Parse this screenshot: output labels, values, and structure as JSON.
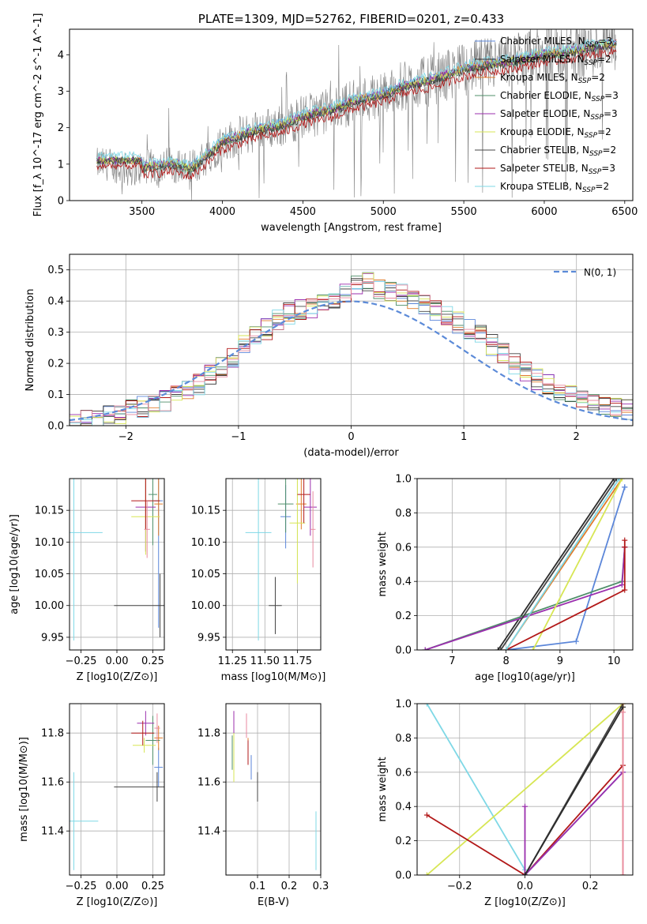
{
  "colors": {
    "miles_chabrier": "#5b86d9",
    "miles_salpeter": "#2b2b2b",
    "miles_kroupa": "#e07b2a",
    "elodie_chabrier": "#4f8f6a",
    "elodie_salpeter": "#9b2fae",
    "elodie_kroupa": "#d7e654",
    "stelib_chabrier": "#444444",
    "stelib_salpeter": "#b21818",
    "stelib_kroupa": "#7fd8e6",
    "gaussian": "#5b8ad8",
    "pink": "#e88aa0",
    "observed": "#808080"
  },
  "chart_data": [
    {
      "id": "spectrum",
      "type": "line",
      "title": "PLATE=1309, MJD=52762, FIBERID=0201, z=0.433",
      "xlabel": "wavelength [Angstrom, rest frame]",
      "ylabel": "Flux [f_λ 10^-17 erg cm^-2 s^-1 A^-1]",
      "xlim": [
        3050,
        6550
      ],
      "ylim": [
        0,
        4.7
      ],
      "xticks": [
        3500,
        4000,
        4500,
        5000,
        5500,
        6000,
        6500
      ],
      "yticks": [
        0,
        1,
        2,
        3,
        4
      ],
      "grid": false,
      "legend_position": "top-right",
      "continuum_x": [
        3220,
        3300,
        3400,
        3500,
        3600,
        3700,
        3800,
        3900,
        4000,
        4100,
        4200,
        4300,
        4400,
        4500,
        4600,
        4700,
        4800,
        4900,
        5000,
        5100,
        5200,
        5300,
        5400,
        5500,
        5600,
        5700,
        5800,
        5900,
        6000,
        6100,
        6200,
        6300,
        6450
      ],
      "continuum_y": [
        1.0,
        1.0,
        0.85,
        0.9,
        0.95,
        1.0,
        0.85,
        1.2,
        1.6,
        1.75,
        1.9,
        2.0,
        2.1,
        2.3,
        2.4,
        2.5,
        2.7,
        2.8,
        2.9,
        3.1,
        3.2,
        3.3,
        3.45,
        3.6,
        3.7,
        3.75,
        3.8,
        3.9,
        4.0,
        4.05,
        4.1,
        4.2,
        4.3
      ],
      "series": [
        {
          "name": "Chabrier MILES, N_SSP=3"
        },
        {
          "name": "Salpeter MILES, N_SSP=2"
        },
        {
          "name": "Kroupa MILES, N_SSP=2"
        },
        {
          "name": "Chabrier ELODIE, N_SSP=3"
        },
        {
          "name": "Salpeter ELODIE, N_SSP=3"
        },
        {
          "name": "Kroupa ELODIE, N_SSP=2"
        },
        {
          "name": "Chabrier STELIB, N_SSP=2"
        },
        {
          "name": "Salpeter STELIB, N_SSP=3"
        },
        {
          "name": "Kroupa STELIB, N_SSP=2"
        }
      ]
    },
    {
      "id": "residuals",
      "type": "line",
      "xlabel": "(data-model)/error",
      "ylabel": "Normed distribution",
      "xlim": [
        -2.5,
        2.5
      ],
      "ylim": [
        0,
        0.55
      ],
      "xticks": [
        -2,
        -1,
        0,
        1,
        2
      ],
      "yticks": [
        0.0,
        0.1,
        0.2,
        0.3,
        0.4,
        0.5
      ],
      "grid": true,
      "legend": "N(0, 1)",
      "legend_position": "top-right",
      "histogram_bin_width": 0.1,
      "histogram_envelope": [
        0.01,
        0.015,
        0.02,
        0.03,
        0.04,
        0.05,
        0.06,
        0.07,
        0.08,
        0.1,
        0.11,
        0.13,
        0.16,
        0.19,
        0.22,
        0.26,
        0.29,
        0.31,
        0.34,
        0.36,
        0.37,
        0.38,
        0.39,
        0.4,
        0.42,
        0.45,
        0.46,
        0.44,
        0.43,
        0.42,
        0.41,
        0.39,
        0.37,
        0.35,
        0.33,
        0.31,
        0.29,
        0.26,
        0.23,
        0.2,
        0.17,
        0.15,
        0.13,
        0.11,
        0.1,
        0.09,
        0.08,
        0.07,
        0.06,
        0.05
      ]
    },
    {
      "id": "age_vs_z",
      "type": "scatter",
      "xlabel": "Z [log10(Z/Z⊙)]",
      "ylabel": "age  [log10(age/yr)]",
      "xlim": [
        -0.33,
        0.33
      ],
      "ylim": [
        9.93,
        10.2
      ],
      "xticks": [
        -0.25,
        0.0,
        0.25
      ],
      "xticklabels": [
        "−0.25",
        "0.00",
        "0.25"
      ],
      "yticks": [
        9.95,
        10.0,
        10.05,
        10.1,
        10.15
      ],
      "grid": true,
      "points": [
        {
          "x": 0.29,
          "y": 10.165,
          "xerr": 0.03,
          "yerr": 0.2,
          "c": "miles_chabrier"
        },
        {
          "x": 0.29,
          "y": 10.16,
          "xerr": 0.03,
          "yerr": 0.05,
          "c": "miles_kroupa"
        },
        {
          "x": 0.3,
          "y": 10.0,
          "xerr": 0.32,
          "yerr": 0.05,
          "c": "stelib_chabrier"
        },
        {
          "x": 0.25,
          "y": 10.175,
          "xerr": 0.03,
          "yerr": 0.08,
          "c": "elodie_chabrier"
        },
        {
          "x": 0.2,
          "y": 10.155,
          "xerr": 0.07,
          "yerr": 0.07,
          "c": "elodie_salpeter"
        },
        {
          "x": 0.2,
          "y": 10.14,
          "xerr": 0.1,
          "yerr": 0.06,
          "c": "elodie_kroupa"
        },
        {
          "x": 0.2,
          "y": 10.165,
          "xerr": 0.1,
          "yerr": 0.045,
          "c": "stelib_salpeter"
        },
        {
          "x": 0.21,
          "y": 10.12,
          "xerr": 0.02,
          "yerr": 0.045,
          "c": "pink"
        },
        {
          "x": -0.3,
          "y": 10.115,
          "xerr": 0.2,
          "yerr": 0.17,
          "c": "stelib_kroupa"
        }
      ]
    },
    {
      "id": "age_vs_mass",
      "type": "scatter",
      "xlabel": "mass [log10(M/M⊙)]",
      "xlim": [
        11.2,
        11.93
      ],
      "ylim": [
        9.93,
        10.2
      ],
      "xticks": [
        11.25,
        11.5,
        11.75
      ],
      "yticks": [
        9.95,
        10.0,
        10.05,
        10.1,
        10.15
      ],
      "grid": true,
      "points": [
        {
          "x": 11.66,
          "y": 10.14,
          "xerr": 0.04,
          "yerr": 0.05,
          "c": "miles_chabrier"
        },
        {
          "x": 11.78,
          "y": 10.16,
          "xerr": 0.04,
          "yerr": 0.04,
          "c": "miles_kroupa"
        },
        {
          "x": 11.58,
          "y": 10.0,
          "xerr": 0.05,
          "yerr": 0.045,
          "c": "stelib_chabrier"
        },
        {
          "x": 11.66,
          "y": 10.16,
          "xerr": 0.06,
          "yerr": 0.045,
          "c": "elodie_chabrier"
        },
        {
          "x": 11.85,
          "y": 10.155,
          "xerr": 0.05,
          "yerr": 0.045,
          "c": "elodie_salpeter"
        },
        {
          "x": 11.75,
          "y": 10.13,
          "xerr": 0.06,
          "yerr": 0.095,
          "c": "elodie_kroupa"
        },
        {
          "x": 11.8,
          "y": 10.175,
          "xerr": 0.05,
          "yerr": 0.045,
          "c": "stelib_salpeter"
        },
        {
          "x": 11.87,
          "y": 10.12,
          "xerr": 0.02,
          "yerr": 0.06,
          "c": "pink"
        },
        {
          "x": 11.45,
          "y": 10.115,
          "xerr": 0.1,
          "yerr": 0.17,
          "c": "stelib_kroupa"
        }
      ]
    },
    {
      "id": "cum_age",
      "type": "line",
      "xlabel": "age  [log10(age/yr)]",
      "ylabel": "mass weight",
      "xlim": [
        6.35,
        10.35
      ],
      "ylim": [
        0,
        1
      ],
      "xticks": [
        7,
        8,
        9,
        10
      ],
      "yticks": [
        0.0,
        0.2,
        0.4,
        0.6,
        0.8,
        1.0
      ],
      "grid": true,
      "series": [
        {
          "c": "miles_chabrier",
          "x": [
            8.0,
            9.3,
            10.2,
            10.2
          ],
          "y": [
            0.0,
            0.05,
            0.95,
            0.95
          ]
        },
        {
          "c": "miles_salpeter",
          "x": [
            7.85,
            10.0
          ],
          "y": [
            0.0,
            1.0
          ]
        },
        {
          "c": "miles_kroupa",
          "x": [
            8.0,
            10.15
          ],
          "y": [
            0.0,
            1.0
          ]
        },
        {
          "c": "elodie_chabrier",
          "x": [
            6.5,
            10.15,
            10.2,
            10.2
          ],
          "y": [
            0.0,
            0.4,
            0.6,
            0.6
          ]
        },
        {
          "c": "elodie_salpeter",
          "x": [
            6.5,
            10.15,
            10.2,
            10.2
          ],
          "y": [
            0.0,
            0.38,
            0.6,
            0.6
          ]
        },
        {
          "c": "elodie_kroupa",
          "x": [
            8.5,
            10.15
          ],
          "y": [
            0.0,
            1.0
          ]
        },
        {
          "c": "stelib_chabrier",
          "x": [
            7.9,
            10.05
          ],
          "y": [
            0.0,
            1.0
          ]
        },
        {
          "c": "stelib_salpeter",
          "x": [
            8.0,
            10.2,
            10.2,
            10.2
          ],
          "y": [
            0.0,
            0.35,
            0.6,
            0.64
          ]
        },
        {
          "c": "stelib_kroupa",
          "x": [
            8.0,
            10.1
          ],
          "y": [
            0.0,
            1.0
          ]
        }
      ]
    },
    {
      "id": "mass_vs_z",
      "type": "scatter",
      "xlabel": "Z [log10(Z/Z⊙)]",
      "ylabel": "mass [log10(M/M⊙)]",
      "xlim": [
        -0.33,
        0.33
      ],
      "ylim": [
        11.22,
        11.92
      ],
      "xticks": [
        -0.25,
        0.0,
        0.25
      ],
      "xticklabels": [
        "−0.25",
        "0.00",
        "0.25"
      ],
      "yticks": [
        11.4,
        11.6,
        11.8
      ],
      "grid": true,
      "points": [
        {
          "x": 0.29,
          "y": 11.66,
          "xerr": 0.03,
          "yerr": 0.08,
          "c": "miles_chabrier"
        },
        {
          "x": 0.29,
          "y": 11.78,
          "xerr": 0.03,
          "yerr": 0.05,
          "c": "miles_kroupa"
        },
        {
          "x": 0.28,
          "y": 11.58,
          "xerr": 0.3,
          "yerr": 0.06,
          "c": "stelib_chabrier"
        },
        {
          "x": 0.25,
          "y": 11.77,
          "xerr": 0.05,
          "yerr": 0.1,
          "c": "elodie_chabrier"
        },
        {
          "x": 0.2,
          "y": 11.84,
          "xerr": 0.06,
          "yerr": 0.05,
          "c": "elodie_salpeter"
        },
        {
          "x": 0.19,
          "y": 11.75,
          "xerr": 0.08,
          "yerr": 0.03,
          "c": "elodie_kroupa"
        },
        {
          "x": 0.18,
          "y": 11.8,
          "xerr": 0.08,
          "yerr": 0.05,
          "c": "stelib_salpeter"
        },
        {
          "x": 0.28,
          "y": 11.82,
          "xerr": 0.02,
          "yerr": 0.06,
          "c": "pink"
        },
        {
          "x": -0.3,
          "y": 11.44,
          "xerr": 0.17,
          "yerr": 0.2,
          "c": "stelib_kroupa"
        }
      ]
    },
    {
      "id": "mass_vs_ebv",
      "type": "scatter",
      "xlabel": "E(B-V)",
      "xlim": [
        0.0,
        0.3
      ],
      "ylim": [
        11.22,
        11.92
      ],
      "xticks": [
        0.1,
        0.2,
        0.3
      ],
      "yticks": [
        11.4,
        11.6,
        11.8
      ],
      "grid": true,
      "points": [
        {
          "x": 0.08,
          "y": 11.66,
          "xerr": 0.0,
          "yerr": 0.05,
          "c": "miles_chabrier"
        },
        {
          "x": 0.07,
          "y": 11.74,
          "xerr": 0.0,
          "yerr": 0.04,
          "c": "miles_kroupa"
        },
        {
          "x": 0.1,
          "y": 11.58,
          "xerr": 0.0,
          "yerr": 0.06,
          "c": "stelib_chabrier"
        },
        {
          "x": 0.02,
          "y": 11.72,
          "xerr": 0.0,
          "yerr": 0.07,
          "c": "elodie_chabrier"
        },
        {
          "x": 0.025,
          "y": 11.84,
          "xerr": 0.0,
          "yerr": 0.05,
          "c": "elodie_salpeter"
        },
        {
          "x": 0.025,
          "y": 11.7,
          "xerr": 0.0,
          "yerr": 0.1,
          "c": "elodie_kroupa"
        },
        {
          "x": 0.07,
          "y": 11.72,
          "xerr": 0.0,
          "yerr": 0.05,
          "c": "stelib_salpeter"
        },
        {
          "x": 0.065,
          "y": 11.83,
          "xerr": 0.0,
          "yerr": 0.05,
          "c": "pink"
        },
        {
          "x": 0.285,
          "y": 11.36,
          "xerr": 0.0,
          "yerr": 0.12,
          "c": "stelib_kroupa"
        }
      ]
    },
    {
      "id": "cum_z",
      "type": "line",
      "xlabel": "Z [log10(Z/Z⊙)]",
      "ylabel": "mass weight",
      "xlim": [
        -0.33,
        0.33
      ],
      "ylim": [
        0,
        1
      ],
      "xticks": [
        -0.2,
        0.0,
        0.2
      ],
      "xticklabels": [
        "−0.2",
        "0.0",
        "0.2"
      ],
      "yticks": [
        0.0,
        0.2,
        0.4,
        0.6,
        0.8,
        1.0
      ],
      "grid": true,
      "series": [
        {
          "c": "stelib_kroupa",
          "x": [
            -0.3,
            0.0
          ],
          "y": [
            1.0,
            0.03
          ]
        },
        {
          "c": "elodie_kroupa",
          "x": [
            -0.3,
            0.3
          ],
          "y": [
            0.0,
            1.0
          ]
        },
        {
          "c": "stelib_salpeter",
          "x": [
            -0.3,
            0.0,
            0.3
          ],
          "y": [
            0.35,
            0.0,
            0.64
          ]
        },
        {
          "c": "miles_chabrier",
          "x": [
            0.0,
            0.3
          ],
          "y": [
            0.0,
            0.6
          ]
        },
        {
          "c": "elodie_salpeter",
          "x": [
            0.0,
            0.0,
            0.0,
            0.3
          ],
          "y": [
            0.4,
            0.0,
            0.0,
            0.6
          ]
        },
        {
          "c": "stelib_chabrier",
          "x": [
            0.0,
            0.3
          ],
          "y": [
            0.0,
            1.0
          ]
        },
        {
          "c": "miles_kroupa",
          "x": [
            0.3,
            0.3
          ],
          "y": [
            0.0,
            1.0
          ]
        },
        {
          "c": "miles_salpeter",
          "x": [
            0.0,
            0.3
          ],
          "y": [
            0.0,
            0.98
          ]
        },
        {
          "c": "pink",
          "x": [
            0.3,
            0.3
          ],
          "y": [
            0.0,
            0.95
          ]
        }
      ]
    }
  ]
}
